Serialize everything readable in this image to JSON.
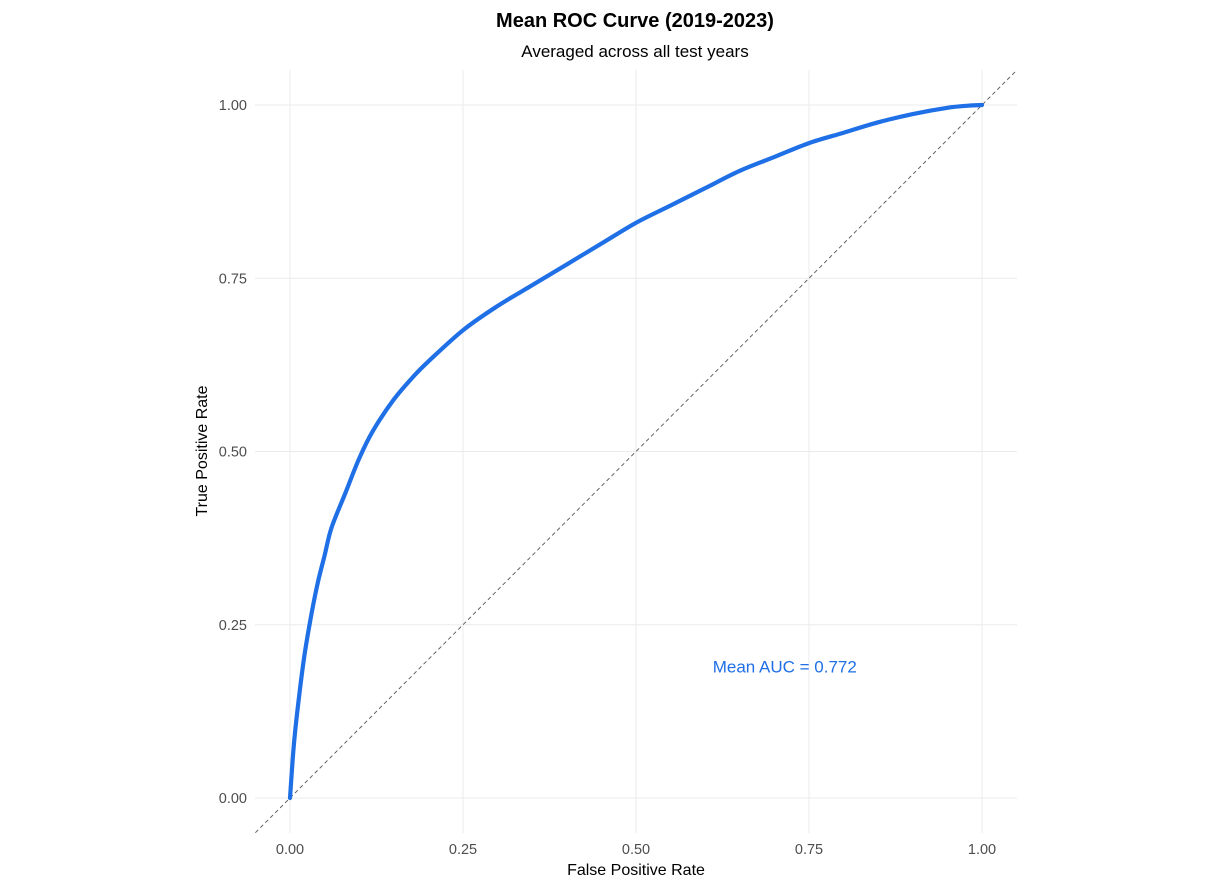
{
  "chart_data": {
    "type": "line",
    "title": "Mean ROC Curve (2019-2023)",
    "subtitle": "Averaged across all test years",
    "xlabel": "False Positive Rate",
    "ylabel": "True Positive Rate",
    "xlim": [
      0,
      1
    ],
    "ylim": [
      0,
      1
    ],
    "xticks": [
      "0.00",
      "0.25",
      "0.50",
      "0.75",
      "1.00"
    ],
    "yticks": [
      "0.00",
      "0.25",
      "0.50",
      "0.75",
      "1.00"
    ],
    "grid": true,
    "legend": "none",
    "series": [
      {
        "color": "#1f6fe6",
        "x": [
          0.0,
          0.005,
          0.01,
          0.02,
          0.03,
          0.04,
          0.05,
          0.06,
          0.08,
          0.1,
          0.12,
          0.15,
          0.18,
          0.2,
          0.25,
          0.3,
          0.35,
          0.4,
          0.45,
          0.5,
          0.55,
          0.6,
          0.65,
          0.7,
          0.75,
          0.8,
          0.85,
          0.9,
          0.95,
          0.98,
          1.0
        ],
        "y": [
          0.0,
          0.07,
          0.12,
          0.2,
          0.26,
          0.31,
          0.35,
          0.39,
          0.44,
          0.49,
          0.53,
          0.575,
          0.61,
          0.63,
          0.675,
          0.71,
          0.74,
          0.77,
          0.8,
          0.83,
          0.855,
          0.88,
          0.905,
          0.925,
          0.945,
          0.96,
          0.975,
          0.987,
          0.996,
          0.999,
          1.0
        ]
      }
    ],
    "reference_line": {
      "x": [
        0,
        1
      ],
      "y": [
        0,
        1
      ],
      "style": "dashed",
      "color": "#555555"
    },
    "annotation": {
      "text": "Mean AUC = 0.772",
      "x": 0.715,
      "y": 0.19,
      "color": "#1f6fe6"
    }
  }
}
